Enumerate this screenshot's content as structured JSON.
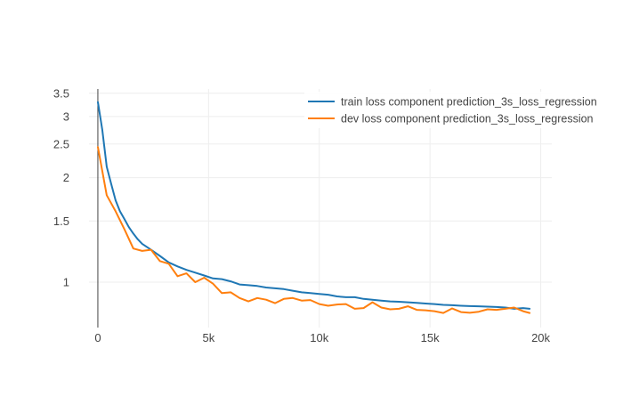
{
  "chart_data": {
    "type": "line",
    "title": "",
    "xlabel": "",
    "ylabel": "",
    "y_scale": "log",
    "xlim": [
      -400,
      20500
    ],
    "ylim": [
      0.74,
      3.6
    ],
    "grid": true,
    "legend_position": "top-right",
    "x_ticks": [
      0,
      5000,
      10000,
      15000,
      20000
    ],
    "x_tick_labels": [
      "0",
      "5k",
      "10k",
      "15k",
      "20k"
    ],
    "y_ticks": [
      1,
      1.5,
      2,
      2.5,
      3,
      3.5
    ],
    "y_tick_labels": [
      "1",
      "1.5",
      "2",
      "2.5",
      "3",
      "3.5"
    ],
    "series": [
      {
        "name": "train loss component prediction_3s_loss_regression",
        "color": "#1f77b4",
        "x": [
          0,
          200,
          400,
          600,
          800,
          1000,
          1200,
          1400,
          1600,
          1800,
          2000,
          2400,
          2800,
          3200,
          3600,
          4000,
          4400,
          4800,
          5200,
          5600,
          6000,
          6400,
          6800,
          7200,
          7600,
          8000,
          8400,
          8800,
          9200,
          9600,
          10000,
          10400,
          10800,
          11200,
          11600,
          12000,
          12400,
          12800,
          13200,
          13600,
          14000,
          14400,
          14800,
          15200,
          15600,
          16000,
          16400,
          16800,
          17200,
          17600,
          18000,
          18400,
          18800,
          19200,
          19500
        ],
        "y": [
          3.3,
          2.75,
          2.15,
          1.92,
          1.72,
          1.6,
          1.52,
          1.44,
          1.38,
          1.33,
          1.29,
          1.24,
          1.19,
          1.14,
          1.11,
          1.085,
          1.065,
          1.045,
          1.025,
          1.02,
          1.005,
          0.985,
          0.98,
          0.975,
          0.965,
          0.96,
          0.955,
          0.945,
          0.935,
          0.93,
          0.925,
          0.92,
          0.91,
          0.905,
          0.905,
          0.895,
          0.89,
          0.885,
          0.88,
          0.878,
          0.875,
          0.872,
          0.868,
          0.865,
          0.86,
          0.858,
          0.855,
          0.853,
          0.852,
          0.85,
          0.848,
          0.845,
          0.838,
          0.842,
          0.838
        ]
      },
      {
        "name": "dev loss component prediction_3s_loss_regression",
        "color": "#ff7f0e",
        "x": [
          0,
          400,
          800,
          1200,
          1600,
          2000,
          2400,
          2800,
          3200,
          3600,
          4000,
          4400,
          4800,
          5200,
          5600,
          6000,
          6400,
          6800,
          7200,
          7600,
          8000,
          8400,
          8800,
          9200,
          9600,
          10000,
          10400,
          10800,
          11200,
          11600,
          12000,
          12400,
          12800,
          13200,
          13600,
          14000,
          14400,
          14800,
          15200,
          15600,
          16000,
          16400,
          16800,
          17200,
          17600,
          18000,
          18400,
          18800,
          19200,
          19500
        ],
        "y": [
          2.45,
          1.78,
          1.6,
          1.42,
          1.25,
          1.23,
          1.24,
          1.15,
          1.13,
          1.04,
          1.06,
          1.0,
          1.03,
          0.99,
          0.93,
          0.935,
          0.9,
          0.88,
          0.9,
          0.89,
          0.87,
          0.895,
          0.9,
          0.885,
          0.888,
          0.865,
          0.855,
          0.862,
          0.865,
          0.838,
          0.842,
          0.875,
          0.845,
          0.835,
          0.838,
          0.852,
          0.832,
          0.83,
          0.825,
          0.815,
          0.84,
          0.82,
          0.816,
          0.822,
          0.835,
          0.832,
          0.838,
          0.845,
          0.825,
          0.815
        ]
      }
    ]
  }
}
